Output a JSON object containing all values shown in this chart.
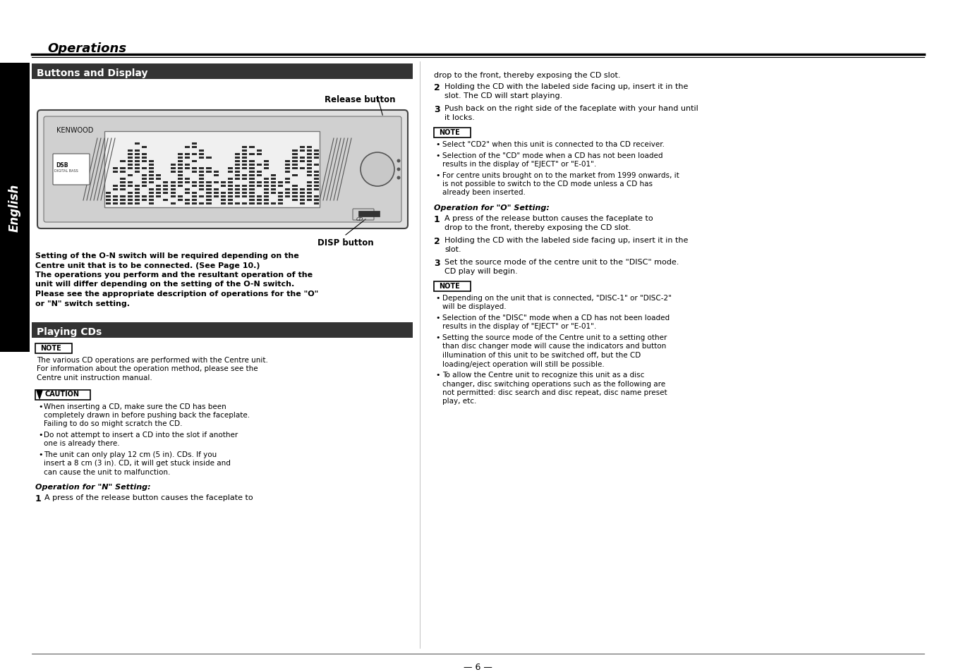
{
  "title": "Operations",
  "section1": "Buttons and Display",
  "section2": "Playing CDs",
  "sidebar_text": "English",
  "page_number": "— 6 —",
  "left_column": {
    "release_button_label": "Release button",
    "disp_button_label": "DISP button",
    "kenwood_label": "KENWOOD",
    "bold_lines": [
      "Setting of the O-N switch will be required depending on the",
      "Centre unit that is to be connected. (See Page 10.)",
      "The operations you perform and the resultant operation of the",
      "unit will differ depending on the setting of the O-N switch.",
      "Please see the appropriate description of operations for the \"O\"",
      "or \"N\" switch setting."
    ],
    "note_lines": [
      "The various CD operations are performed with the Centre unit.",
      "For information about the operation method, please see the",
      "Centre unit instruction manual."
    ],
    "caution_items": [
      "When inserting a CD, make sure the CD has been completely drawn in before pushing back the faceplate. Failing to do so might scratch the CD.",
      "Do not attempt to insert a CD into the slot if another one is already there.",
      "The unit can only play 12 cm (5 in). CDs. If you insert a 8 cm (3 in). CD, it will get stuck inside and can cause the unit to malfunction."
    ],
    "operation_n_title": "Operation for \"N\" Setting:",
    "operation_n_step1": "A press of the release button causes the faceplate to"
  },
  "right_column": {
    "line0": "drop to the front, thereby exposing the CD slot.",
    "step2_text": "Holding the CD with the labeled side facing up, insert it in the\nslot. The CD will start playing.",
    "step3_text": "Push back on the right side of the faceplate with your hand until\nit locks.",
    "note2_items": [
      "Select \"CD2\" when this unit is connected to tha CD receiver.",
      "Selection of the \"CD\" mode when a CD has not been loaded results in the display of \"EJECT\" or \"E-01\".",
      "For centre units brought on to the market from 1999 onwards, it is not possible to switch to the CD mode unless a CD has already been inserted."
    ],
    "operation_o_title": "Operation for \"O\" Setting:",
    "o_step1_text": "A press of the release button causes the faceplate to\ndrop to the front, thereby exposing the CD slot.",
    "o_step2_text": "Holding the CD with the labeled side facing up, insert it in the\nslot.",
    "o_step3_text": "Set the source mode of the centre unit to the \"DISC\" mode.\nCD play will begin.",
    "note3_items": [
      "Depending on the unit that is connected, \"DISC-1\" or \"DISC-2\" will be displayed.",
      "Selection of the \"DISC\" mode when a CD has not been loaded results in the display of \"EJECT\" or \"E-01\".",
      "Setting the source mode of the Centre unit to a setting other than disc changer mode will cause the indicators and button illumination of this unit to be switched off, but the CD loading/eject operation will still be possible.",
      "To allow the Centre unit to recognize this unit as a disc changer, disc switching operations such as the following are not permitted: disc search and disc repeat, disc name preset play, etc."
    ]
  },
  "colors": {
    "background": "#ffffff",
    "header_bar": "#333333",
    "header_text": "#ffffff",
    "title_text": "#000000",
    "sidebar_bg": "#000000",
    "sidebar_text": "#ffffff",
    "body_text": "#000000",
    "line_color": "#000000"
  }
}
